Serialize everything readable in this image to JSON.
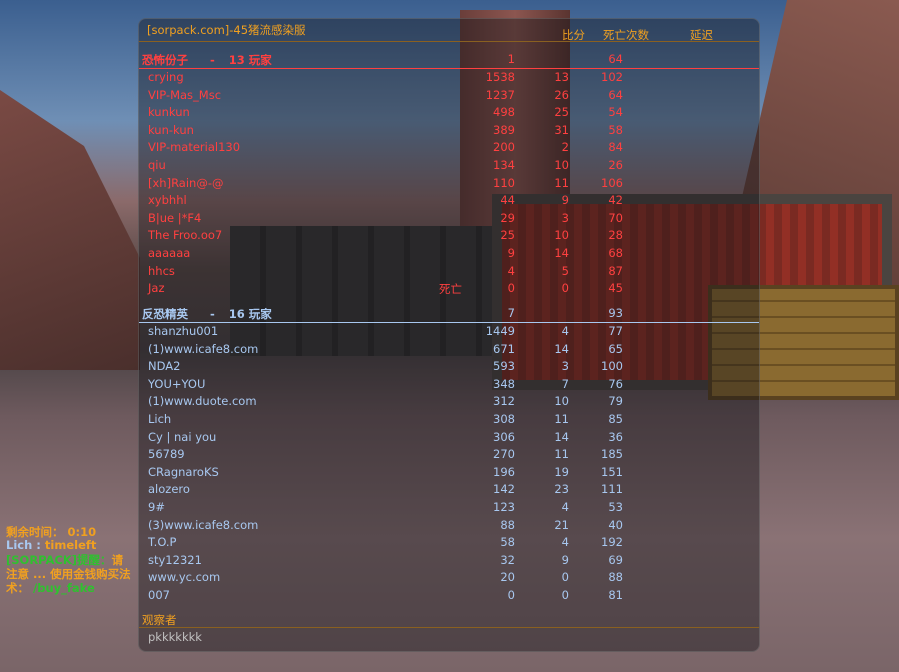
{
  "scoreboard": {
    "server_title": "[sorpack.com]-45猪流感染服",
    "columns": {
      "score": "比分",
      "deaths": "死亡次数",
      "latency": "延迟"
    },
    "terrorists": {
      "team_name": "恐怖份子",
      "separator": "-",
      "player_count": "13 玩家",
      "team_score": "1",
      "team_latency": "64",
      "color": "#ff4040",
      "players": [
        {
          "name": "crying",
          "status": "",
          "score": "1538",
          "deaths": "13",
          "latency": "102"
        },
        {
          "name": "VIP-Mas_Msc",
          "status": "",
          "score": "1237",
          "deaths": "26",
          "latency": "64"
        },
        {
          "name": "kunkun",
          "status": "",
          "score": "498",
          "deaths": "25",
          "latency": "54"
        },
        {
          "name": "kun-kun",
          "status": "",
          "score": "389",
          "deaths": "31",
          "latency": "58"
        },
        {
          "name": "VIP-material130",
          "status": "",
          "score": "200",
          "deaths": "2",
          "latency": "84"
        },
        {
          "name": "qiu",
          "status": "",
          "score": "134",
          "deaths": "10",
          "latency": "26"
        },
        {
          "name": "[xh]Rain@-@",
          "status": "",
          "score": "110",
          "deaths": "11",
          "latency": "106"
        },
        {
          "name": "xybhhl",
          "status": "",
          "score": "44",
          "deaths": "9",
          "latency": "42"
        },
        {
          "name": "B|ue |*F4",
          "status": "",
          "score": "29",
          "deaths": "3",
          "latency": "70"
        },
        {
          "name": "The Froo.oo7",
          "status": "",
          "score": "25",
          "deaths": "10",
          "latency": "28"
        },
        {
          "name": "aaaaaa",
          "status": "",
          "score": "9",
          "deaths": "14",
          "latency": "68"
        },
        {
          "name": "hhcs",
          "status": "",
          "score": "4",
          "deaths": "5",
          "latency": "87"
        },
        {
          "name": "Jaz",
          "status": "死亡",
          "score": "0",
          "deaths": "0",
          "latency": "45"
        }
      ]
    },
    "counter_terrorists": {
      "team_name": "反恐精英",
      "separator": "-",
      "player_count": "16 玩家",
      "team_score": "7",
      "team_latency": "93",
      "color": "#a8c8f0",
      "players": [
        {
          "name": "shanzhu001",
          "status": "",
          "score": "1449",
          "deaths": "4",
          "latency": "77"
        },
        {
          "name": "(1)www.icafe8.com",
          "status": "",
          "score": "671",
          "deaths": "14",
          "latency": "65"
        },
        {
          "name": "NDA2",
          "status": "",
          "score": "593",
          "deaths": "3",
          "latency": "100"
        },
        {
          "name": "YOU+YOU",
          "status": "",
          "score": "348",
          "deaths": "7",
          "latency": "76"
        },
        {
          "name": "(1)www.duote.com",
          "status": "",
          "score": "312",
          "deaths": "10",
          "latency": "79"
        },
        {
          "name": "Lich",
          "status": "",
          "score": "308",
          "deaths": "11",
          "latency": "85"
        },
        {
          "name": "Cy | nai you",
          "status": "",
          "score": "306",
          "deaths": "14",
          "latency": "36"
        },
        {
          "name": "56789",
          "status": "",
          "score": "270",
          "deaths": "11",
          "latency": "185"
        },
        {
          "name": "CRagnaroKS",
          "status": "",
          "score": "196",
          "deaths": "19",
          "latency": "151"
        },
        {
          "name": "alozero",
          "status": "",
          "score": "142",
          "deaths": "23",
          "latency": "111"
        },
        {
          "name": "9#",
          "status": "",
          "score": "123",
          "deaths": "4",
          "latency": "53"
        },
        {
          "name": "(3)www.icafe8.com",
          "status": "",
          "score": "88",
          "deaths": "21",
          "latency": "40"
        },
        {
          "name": "T.O.P",
          "status": "",
          "score": "58",
          "deaths": "4",
          "latency": "192"
        },
        {
          "name": "sty12321",
          "status": "",
          "score": "32",
          "deaths": "9",
          "latency": "69"
        },
        {
          "name": "www.yc.com",
          "status": "",
          "score": "20",
          "deaths": "0",
          "latency": "88"
        },
        {
          "name": "007",
          "status": "",
          "score": "0",
          "deaths": "0",
          "latency": "81"
        }
      ]
    },
    "spectators": {
      "label": "观察者",
      "players": [
        "pkkkkkkk"
      ]
    }
  },
  "chat": {
    "time_left": {
      "label": "剩余时间：",
      "value": "0:10"
    },
    "message": {
      "sender": "Lich",
      "separator": ":",
      "text": "timeleft"
    },
    "notice": {
      "tag": "[SORPACK]提醒：",
      "text": "请注意 ... 使用金钱购买法术：",
      "command": "/buy_fake"
    }
  }
}
